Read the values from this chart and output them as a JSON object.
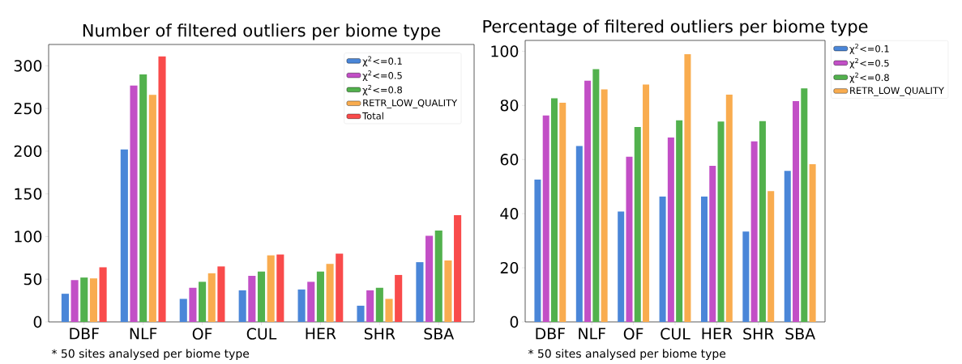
{
  "chart_data": [
    {
      "type": "bar",
      "title": "Number of filtered outliers per biome type",
      "categories": [
        "DBF",
        "NLF",
        "OF",
        "CUL",
        "HER",
        "SHR",
        "SBA"
      ],
      "series": [
        {
          "name": "χ$^{2}$<=0.1",
          "color": "#4a86d8",
          "values": [
            33,
            202,
            27,
            37,
            38,
            19,
            70
          ]
        },
        {
          "name": "χ$^{2}$<=0.5",
          "color": "#c24fc6",
          "values": [
            49,
            277,
            40,
            54,
            47,
            37,
            101
          ]
        },
        {
          "name": "χ$^{2}$<=0.8",
          "color": "#52b14d",
          "values": [
            52,
            290,
            47,
            59,
            59,
            40,
            107
          ]
        },
        {
          "name": "RETR_LOW_QUALITY",
          "color": "#f9ac4f",
          "values": [
            51,
            266,
            57,
            78,
            68,
            27,
            72
          ]
        },
        {
          "name": "Total",
          "color": "#f94b4b",
          "values": [
            64,
            311,
            65,
            79,
            80,
            55,
            125
          ]
        }
      ],
      "ylim": [
        0,
        325
      ],
      "yticks": [
        0,
        50,
        100,
        150,
        200,
        250,
        300
      ],
      "legend": "top right",
      "annotations": [
        "* 50 sites analysed per biome type"
      ]
    },
    {
      "type": "bar",
      "title": "Percentage of filtered outliers per biome type",
      "categories": [
        "DBF",
        "NLF",
        "OF",
        "CUL",
        "HER",
        "SHR",
        "SBA"
      ],
      "series": [
        {
          "name": "χ$^{2}$<=0.1",
          "color": "#4a86d8",
          "values": [
            52.6,
            65.0,
            40.8,
            46.3,
            46.3,
            33.4,
            55.8
          ]
        },
        {
          "name": "χ$^{2}$<=0.5",
          "color": "#c24fc6",
          "values": [
            76.3,
            89.1,
            61.0,
            68.1,
            57.7,
            66.7,
            81.6
          ]
        },
        {
          "name": "χ$^{2}$<=0.8",
          "color": "#52b14d",
          "values": [
            82.6,
            93.4,
            72.0,
            74.5,
            74.0,
            74.2,
            86.3
          ]
        },
        {
          "name": "RETR_LOW_QUALITY",
          "color": "#f9ac4f",
          "values": [
            81.0,
            85.9,
            87.7,
            98.9,
            84.0,
            48.3,
            58.3
          ]
        }
      ],
      "ylim": [
        0,
        104
      ],
      "yticks": [
        0,
        20,
        40,
        60,
        80,
        100
      ],
      "legend": "right",
      "annotations": [
        "* 50 sites analysed per biome type"
      ]
    }
  ]
}
